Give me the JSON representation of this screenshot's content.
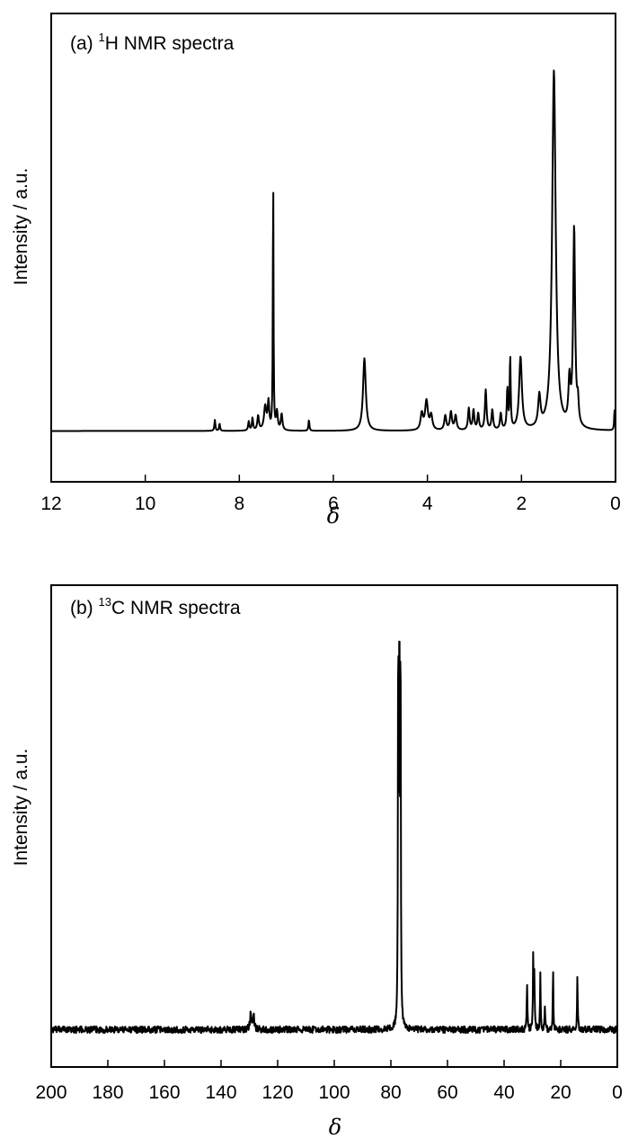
{
  "chart_data": [
    {
      "id": "h1",
      "type": "line",
      "panel_prefix": "(a) ",
      "panel_sup": "1",
      "panel_rest": "H NMR spectra",
      "xlabel": "δ",
      "ylabel": "Intensity / a.u.",
      "xlim": [
        12,
        0
      ],
      "ylim": [
        -0.14,
        1.15
      ],
      "x_reversed": true,
      "yticks_shown": false,
      "xticks": [
        12,
        10,
        8,
        6,
        4,
        2,
        0
      ],
      "baseline": 0,
      "peaks": [
        {
          "x": 8.52,
          "y": 0.03,
          "w": 0.012
        },
        {
          "x": 8.42,
          "y": 0.02,
          "w": 0.012
        },
        {
          "x": 7.8,
          "y": 0.025,
          "w": 0.015
        },
        {
          "x": 7.72,
          "y": 0.035,
          "w": 0.015
        },
        {
          "x": 7.6,
          "y": 0.04,
          "w": 0.02
        },
        {
          "x": 7.45,
          "y": 0.065,
          "w": 0.03
        },
        {
          "x": 7.38,
          "y": 0.075,
          "w": 0.02
        },
        {
          "x": 7.28,
          "y": 0.73,
          "w": 0.008
        },
        {
          "x": 7.2,
          "y": 0.05,
          "w": 0.02
        },
        {
          "x": 7.1,
          "y": 0.045,
          "w": 0.02
        },
        {
          "x": 6.52,
          "y": 0.03,
          "w": 0.012
        },
        {
          "x": 5.34,
          "y": 0.2,
          "w": 0.035
        },
        {
          "x": 4.12,
          "y": 0.045,
          "w": 0.03
        },
        {
          "x": 4.02,
          "y": 0.08,
          "w": 0.035
        },
        {
          "x": 3.92,
          "y": 0.04,
          "w": 0.03
        },
        {
          "x": 3.62,
          "y": 0.04,
          "w": 0.025
        },
        {
          "x": 3.5,
          "y": 0.05,
          "w": 0.025
        },
        {
          "x": 3.4,
          "y": 0.04,
          "w": 0.025
        },
        {
          "x": 3.12,
          "y": 0.06,
          "w": 0.02
        },
        {
          "x": 3.02,
          "y": 0.055,
          "w": 0.02
        },
        {
          "x": 2.92,
          "y": 0.045,
          "w": 0.02
        },
        {
          "x": 2.76,
          "y": 0.11,
          "w": 0.02
        },
        {
          "x": 2.62,
          "y": 0.055,
          "w": 0.02
        },
        {
          "x": 2.44,
          "y": 0.045,
          "w": 0.02
        },
        {
          "x": 2.3,
          "y": 0.11,
          "w": 0.015
        },
        {
          "x": 2.24,
          "y": 0.2,
          "w": 0.012
        },
        {
          "x": 2.02,
          "y": 0.2,
          "w": 0.035
        },
        {
          "x": 1.62,
          "y": 0.085,
          "w": 0.03
        },
        {
          "x": 1.31,
          "y": 0.99,
          "w": 0.045
        },
        {
          "x": 0.98,
          "y": 0.12,
          "w": 0.025
        },
        {
          "x": 0.88,
          "y": 0.55,
          "w": 0.025
        },
        {
          "x": 0.8,
          "y": 0.06,
          "w": 0.02
        },
        {
          "x": 0.02,
          "y": 0.06,
          "w": 0.01
        }
      ]
    },
    {
      "id": "c13",
      "type": "line",
      "panel_prefix": "(b) ",
      "panel_sup": "13",
      "panel_rest": "C NMR spectra",
      "xlabel": "δ",
      "ylabel": "Intensity / a.u.",
      "xlim": [
        200,
        0
      ],
      "ylim": [
        -0.09,
        1.07
      ],
      "x_reversed": true,
      "yticks_shown": false,
      "xticks": [
        200,
        180,
        160,
        140,
        120,
        100,
        80,
        60,
        40,
        20,
        0
      ],
      "baseline": 0,
      "noise": 0.008,
      "peaks": [
        {
          "x": 129.5,
          "y": 0.04,
          "w": 0.3
        },
        {
          "x": 128.5,
          "y": 0.035,
          "w": 0.3
        },
        {
          "x": 77.4,
          "y": 1.0,
          "w": 0.12
        },
        {
          "x": 77.0,
          "y": 0.99,
          "w": 0.12
        },
        {
          "x": 76.6,
          "y": 0.98,
          "w": 0.12
        },
        {
          "x": 31.9,
          "y": 0.12,
          "w": 0.12
        },
        {
          "x": 29.7,
          "y": 0.19,
          "w": 0.12
        },
        {
          "x": 29.3,
          "y": 0.13,
          "w": 0.12
        },
        {
          "x": 27.2,
          "y": 0.13,
          "w": 0.12
        },
        {
          "x": 25.6,
          "y": 0.06,
          "w": 0.12
        },
        {
          "x": 22.7,
          "y": 0.14,
          "w": 0.12
        },
        {
          "x": 14.1,
          "y": 0.13,
          "w": 0.12
        }
      ]
    }
  ]
}
